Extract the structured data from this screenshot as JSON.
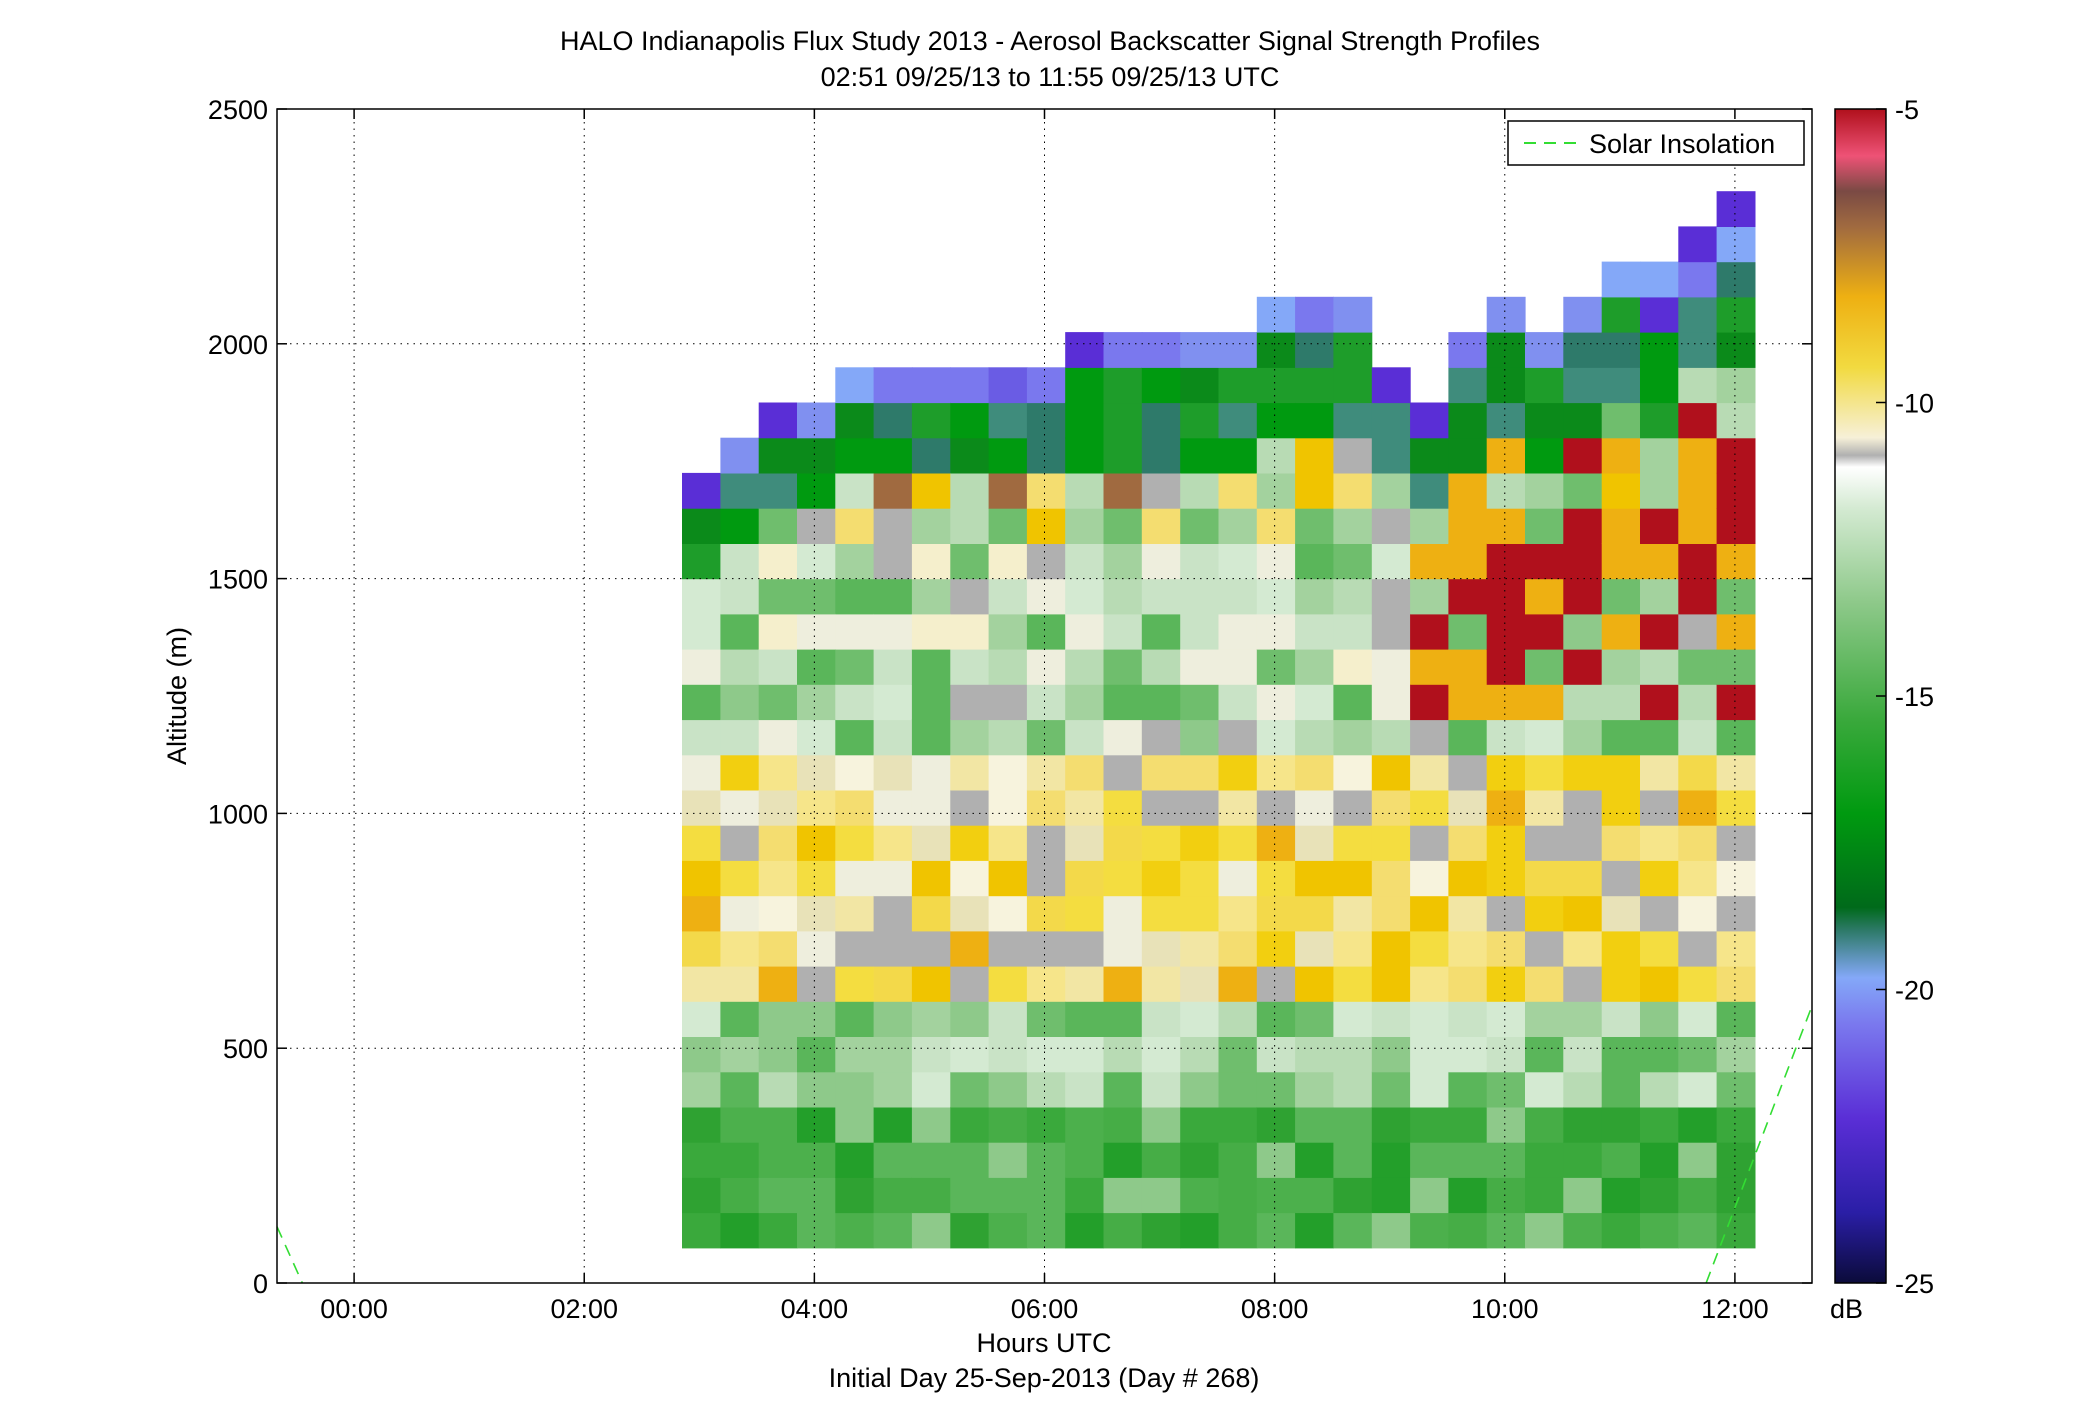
{
  "chart_data": {
    "type": "heatmap",
    "title": "HALO Indianapolis Flux Study 2013 - Aerosol Backscatter Signal Strength Profiles",
    "subtitle": "02:51 09/25/13 to 11:55 09/25/13  UTC",
    "xlabel": "Hours UTC",
    "xlabel2": "Initial Day 25-Sep-2013 (Day # 268)",
    "ylabel": "Altitude (m)",
    "x_ticks": [
      "00:00",
      "02:00",
      "04:00",
      "06:00",
      "08:00",
      "10:00",
      "12:00"
    ],
    "x_tick_hours": [
      0,
      2,
      4,
      6,
      8,
      10,
      12
    ],
    "xlim_hours": [
      -0.67,
      12.67
    ],
    "y_ticks": [
      "0",
      "500",
      "1000",
      "1500",
      "2000",
      "2500"
    ],
    "y_tick_values": [
      0,
      500,
      1000,
      1500,
      2000,
      2500
    ],
    "ylim": [
      0,
      2500
    ],
    "grid": true,
    "legend": {
      "label": "Solar Insolation",
      "placement": "top-right",
      "color": "#33dd33",
      "style": "dashed"
    },
    "colorbar": {
      "label": "dB",
      "ticks": [
        "-5",
        "-10",
        "-15",
        "-20",
        "-25"
      ],
      "tick_values": [
        -5,
        -10,
        -15,
        -20,
        -25
      ],
      "range": [
        -25,
        -5
      ]
    },
    "time_start_hours": 2.85,
    "time_bin_hours": 0.333,
    "alt_start_m": 75,
    "alt_bin_m": 75,
    "n_times": 28,
    "profile_tops_m": [
      1725,
      1800,
      1875,
      1875,
      1950,
      1950,
      1950,
      1950,
      1950,
      1950,
      2025,
      2025,
      2025,
      2025,
      2025,
      2100,
      2100,
      2100,
      1950,
      1875,
      2025,
      2100,
      2025,
      2100,
      2175,
      2125,
      2225,
      2300
    ],
    "solar_insolation": [
      {
        "hour": -0.67,
        "alt_m": 120
      },
      {
        "hour": -0.45,
        "alt_m": 0
      },
      {
        "hour": 11.75,
        "alt_m": 0
      },
      {
        "hour": 12.67,
        "alt_m": 590
      }
    ]
  }
}
